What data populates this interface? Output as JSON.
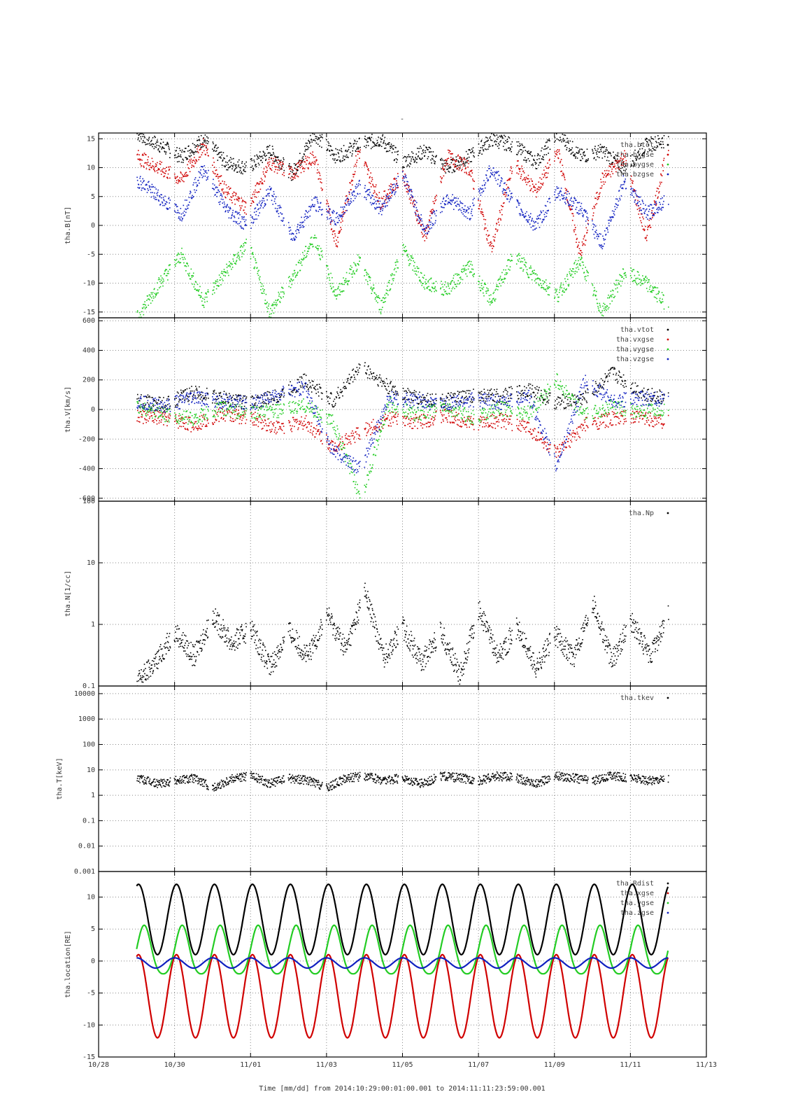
{
  "page_title": "-",
  "x_axis": {
    "ticks": [
      "10/28",
      "10/30",
      "11/01",
      "11/03",
      "11/05",
      "11/07",
      "11/09",
      "11/11",
      "11/13"
    ],
    "xlabel": "Time [mm/dd]  from 2014:10:29:00:01:00.001  to  2014:11:11:23:59:00.001",
    "range_days": [
      0,
      16
    ],
    "data_range_days": [
      1.0,
      14.998
    ]
  },
  "colors": {
    "black": "#000000",
    "red": "#d00000",
    "green": "#22cc22",
    "blue": "#1020c0"
  },
  "chart_data": [
    {
      "type": "scatter",
      "ylabel": "tha.B[nT]",
      "ylim": [
        -16,
        16
      ],
      "yticks": [
        "15",
        "10",
        "5",
        "0",
        "-5",
        "-10",
        "-15"
      ],
      "legend": [
        "tha.btot",
        "tha.bxgse",
        "tha.bygse",
        "tha.bzgse"
      ],
      "series": [
        {
          "name": "tha.btot",
          "color": "#000000",
          "values": [
            16,
            14,
            12,
            15,
            11,
            10,
            13,
            9,
            16,
            12,
            14,
            15,
            11,
            13,
            10,
            12,
            15,
            14,
            11,
            16,
            12,
            13,
            10,
            14,
            15
          ]
        },
        {
          "name": "tha.bxgse",
          "color": "#d00000",
          "values": [
            12,
            10,
            8,
            14,
            6,
            3,
            11,
            9,
            12,
            -3,
            13,
            4,
            9,
            -2,
            12,
            10,
            -4,
            11,
            6,
            13,
            -5,
            8,
            12,
            -2,
            14
          ]
        },
        {
          "name": "tha.bygse",
          "color": "#22cc22",
          "values": [
            -16,
            -10,
            -5,
            -13,
            -8,
            -3,
            -15,
            -9,
            -2,
            -12,
            -6,
            -14,
            -4,
            -10,
            -11,
            -7,
            -13,
            -5,
            -9,
            -12,
            -6,
            -15,
            -8,
            -10,
            -14
          ]
        },
        {
          "name": "tha.bzgse",
          "color": "#1020c0",
          "values": [
            8,
            5,
            2,
            10,
            3,
            0,
            6,
            -2,
            4,
            1,
            7,
            3,
            9,
            -1,
            5,
            2,
            10,
            4,
            0,
            6,
            3,
            -3,
            8,
            2,
            5
          ]
        }
      ]
    },
    {
      "type": "scatter",
      "ylabel": "tha.V[km/s]",
      "ylim": [
        -620,
        620
      ],
      "yticks": [
        "600",
        "400",
        "200",
        "0",
        "-200",
        "-400",
        "-600"
      ],
      "legend": [
        "tha.vtot",
        "tha.vxgse",
        "tha.vygse",
        "tha.vzgse"
      ],
      "series": [
        {
          "name": "tha.vtot",
          "color": "#000000",
          "values": [
            60,
            40,
            120,
            80,
            50,
            90,
            200,
            60,
            300,
            150,
            80,
            60,
            100,
            90,
            140,
            50,
            80,
            250,
            120,
            70
          ]
        },
        {
          "name": "tha.vxgse",
          "color": "#d00000",
          "values": [
            -40,
            -60,
            -100,
            -30,
            -50,
            -120,
            -80,
            -250,
            -150,
            -60,
            -80,
            -40,
            -90,
            -70,
            -120,
            -300,
            -100,
            -60,
            -50,
            -80
          ]
        },
        {
          "name": "tha.vygse",
          "color": "#22cc22",
          "values": [
            20,
            -30,
            -60,
            10,
            -20,
            -10,
            30,
            -80,
            -600,
            40,
            -30,
            20,
            -50,
            10,
            -20,
            200,
            -40,
            30,
            -20,
            10
          ]
        },
        {
          "name": "tha.vzgse",
          "color": "#1020c0",
          "values": [
            50,
            30,
            80,
            60,
            40,
            100,
            150,
            -280,
            -400,
            80,
            60,
            40,
            70,
            50,
            90,
            -380,
            200,
            60,
            80,
            70
          ]
        }
      ]
    },
    {
      "type": "scatter",
      "ylabel": "tha.N[1/cc]",
      "yscale": "log",
      "ylim": [
        0.1,
        100
      ],
      "yticks": [
        "100",
        "10",
        "1",
        "0.1"
      ],
      "legend": [
        "tha.Np"
      ],
      "series": [
        {
          "name": "tha.Np",
          "color": "#000000",
          "x": [
            1.0,
            1.5,
            2.0,
            2.5,
            3.0,
            3.5,
            4.0,
            4.5,
            5.0,
            5.5,
            6.0,
            6.5,
            7.0,
            7.5,
            8.0,
            8.5,
            9.0,
            9.5,
            10.0,
            10.5,
            11.0,
            11.5,
            12.0,
            12.5,
            13.0,
            13.5,
            14.0,
            14.5,
            15.0
          ],
          "values": [
            0.12,
            0.25,
            0.8,
            0.3,
            1.4,
            0.5,
            0.9,
            0.2,
            0.8,
            0.3,
            1.5,
            0.4,
            3.5,
            0.3,
            0.9,
            0.25,
            0.8,
            0.15,
            1.8,
            0.3,
            0.9,
            0.2,
            0.7,
            0.3,
            2.5,
            0.25,
            1.2,
            0.3,
            1.5
          ]
        }
      ]
    },
    {
      "type": "scatter",
      "ylabel": "tha.T[keV]",
      "yscale": "log",
      "ylim": [
        0.001,
        20000
      ],
      "yticks": [
        "10000",
        "1000",
        "100",
        "10",
        "1",
        "0.1",
        "0.01",
        "0.001"
      ],
      "legend": [
        "tha.tkev"
      ],
      "series": [
        {
          "name": "tha.tkev",
          "color": "#000000",
          "x": [
            1.0,
            1.5,
            2.0,
            2.5,
            3.0,
            3.5,
            4.0,
            4.5,
            5.0,
            5.5,
            6.0,
            6.5,
            7.0,
            7.5,
            8.0,
            8.5,
            9.0,
            9.5,
            10.0,
            10.5,
            11.0,
            11.5,
            12.0,
            12.5,
            13.0,
            13.5,
            14.0,
            14.5,
            15.0
          ],
          "values": [
            5,
            3,
            4,
            5,
            2,
            5,
            6,
            3,
            5,
            4,
            2,
            5,
            6,
            4,
            5,
            3,
            6,
            5,
            4,
            6,
            5,
            3,
            6,
            5,
            4,
            6,
            5,
            4,
            5
          ]
        }
      ]
    },
    {
      "type": "line",
      "ylabel": "tha.location[RE]",
      "ylim": [
        -15,
        14
      ],
      "yticks": [
        "10",
        "5",
        "0",
        "-5",
        "-10",
        "-15"
      ],
      "legend": [
        "tha.Rdist",
        "tha.xgse",
        "tha.ygse",
        "tha.zgse"
      ],
      "orbit_period_days": 1.0,
      "series": [
        {
          "name": "tha.Rdist",
          "color": "#000000",
          "values_desc": "oscillates between 1 and 12 RE once per day"
        },
        {
          "name": "tha.xgse",
          "color": "#d00000",
          "values_desc": "oscillates between -12 and 1 RE once per day"
        },
        {
          "name": "tha.ygse",
          "color": "#22cc22",
          "values_desc": "oscillates between -2.5 and 5 RE once per day"
        },
        {
          "name": "tha.zgse",
          "color": "#1020c0",
          "values_desc": "oscillates between -1 and 0.5 RE once per day"
        }
      ]
    }
  ]
}
